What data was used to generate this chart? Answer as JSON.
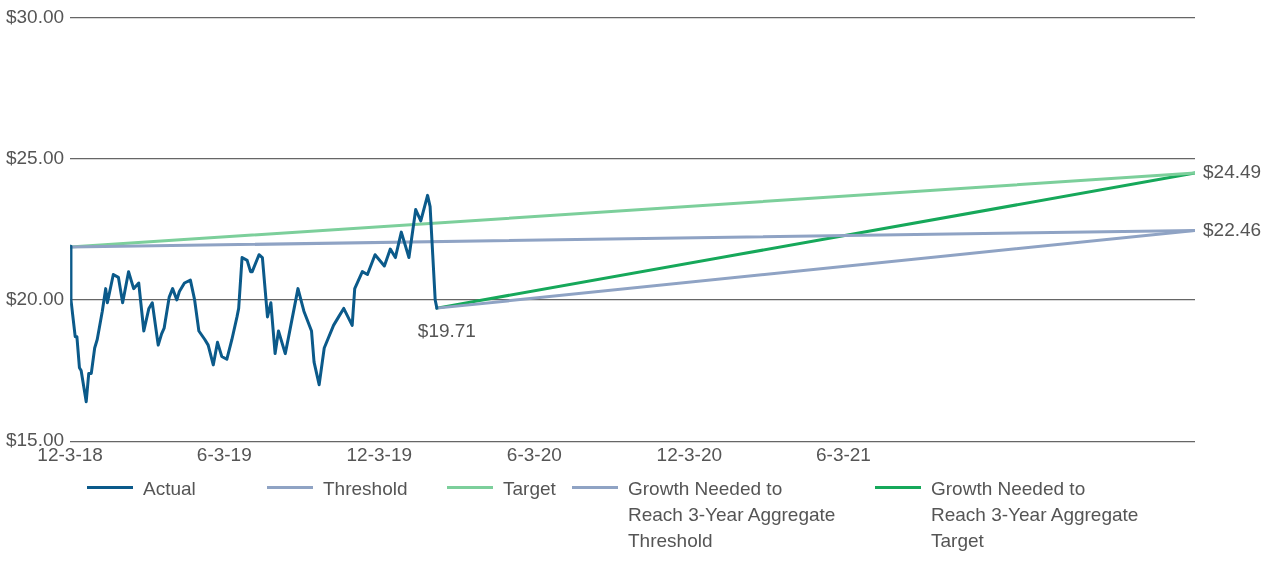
{
  "chart_data": {
    "type": "line",
    "xlim": [
      "2018-12-03",
      "2022-07-23"
    ],
    "xticks": [
      {
        "value": "2018-12-03",
        "label": "12-3-18"
      },
      {
        "value": "2019-06-03",
        "label": "6-3-19"
      },
      {
        "value": "2019-12-03",
        "label": "12-3-19"
      },
      {
        "value": "2020-06-03",
        "label": "6-3-20"
      },
      {
        "value": "2020-12-03",
        "label": "12-3-20"
      },
      {
        "value": "2021-06-03",
        "label": "6-3-21"
      }
    ],
    "ylim": [
      15,
      30
    ],
    "yticks": [
      {
        "value": 15,
        "label": "$15.00"
      },
      {
        "value": 20,
        "label": "$20.00"
      },
      {
        "value": 25,
        "label": "$25.00"
      },
      {
        "value": 30,
        "label": "$30.00"
      }
    ],
    "grid": "y",
    "legend": "bottom",
    "marker": "none",
    "line_style": "solid",
    "series": [
      {
        "name": "Actual",
        "color": "#0b5a8a",
        "x": [
          "2018-12-03",
          "2018-12-04",
          "2018-12-09",
          "2018-12-11",
          "2018-12-14",
          "2018-12-16",
          "2018-12-22",
          "2018-12-25",
          "2018-12-28",
          "2019-01-01",
          "2019-01-04",
          "2019-01-10",
          "2019-01-14",
          "2019-01-16",
          "2019-01-23",
          "2019-01-29",
          "2019-02-03",
          "2019-02-10",
          "2019-02-16",
          "2019-02-22",
          "2019-02-28",
          "2019-03-06",
          "2019-03-10",
          "2019-03-17",
          "2019-03-21",
          "2019-03-24",
          "2019-03-30",
          "2019-04-03",
          "2019-04-08",
          "2019-04-11",
          "2019-04-17",
          "2019-04-24",
          "2019-04-29",
          "2019-05-04",
          "2019-05-11",
          "2019-05-15",
          "2019-05-21",
          "2019-05-26",
          "2019-05-31",
          "2019-06-06",
          "2019-06-12",
          "2019-06-18",
          "2019-06-20",
          "2019-06-24",
          "2019-06-30",
          "2019-07-04",
          "2019-07-06",
          "2019-07-14",
          "2019-07-18",
          "2019-07-24",
          "2019-07-28",
          "2019-08-02",
          "2019-08-06",
          "2019-08-14",
          "2019-08-18",
          "2019-08-29",
          "2019-09-05",
          "2019-09-14",
          "2019-09-17",
          "2019-09-23",
          "2019-09-29",
          "2019-10-10",
          "2019-10-16",
          "2019-10-22",
          "2019-11-01",
          "2019-11-04",
          "2019-11-13",
          "2019-11-19",
          "2019-11-28",
          "2019-12-09",
          "2019-12-16",
          "2019-12-22",
          "2019-12-29",
          "2020-01-07",
          "2020-01-15",
          "2020-01-21",
          "2020-01-29",
          "2020-02-01",
          "2020-02-07",
          "2020-02-09"
        ],
        "values": [
          21.9,
          20.0,
          18.7,
          18.7,
          17.6,
          17.5,
          16.4,
          17.4,
          17.4,
          18.3,
          18.6,
          19.6,
          20.4,
          19.9,
          20.9,
          20.8,
          19.9,
          21.0,
          20.4,
          20.6,
          18.9,
          19.7,
          19.9,
          18.4,
          18.8,
          19.0,
          20.1,
          20.4,
          20.0,
          20.3,
          20.6,
          20.7,
          20.0,
          18.9,
          18.6,
          18.4,
          17.7,
          18.5,
          18.0,
          17.9,
          18.6,
          19.4,
          19.7,
          21.5,
          21.4,
          21.0,
          21.0,
          21.6,
          21.5,
          19.4,
          19.9,
          18.1,
          18.9,
          18.1,
          18.7,
          20.4,
          19.6,
          18.9,
          17.8,
          17.0,
          18.3,
          19.1,
          19.4,
          19.7,
          19.1,
          20.4,
          21.0,
          20.9,
          21.6,
          21.2,
          21.8,
          21.5,
          22.4,
          21.5,
          23.2,
          22.8,
          23.7,
          23.3,
          20.0,
          19.71
        ]
      },
      {
        "name": "Threshold",
        "color": "#8fa3c4",
        "x": [
          "2018-12-03",
          "2022-07-23"
        ],
        "values": [
          21.87,
          22.46
        ]
      },
      {
        "name": "Target",
        "color": "#7ccf9b",
        "x": [
          "2018-12-03",
          "2022-07-23"
        ],
        "values": [
          21.87,
          24.49
        ]
      },
      {
        "name": "Growth Needed to Reach 3-Year Aggregate Threshold",
        "color": "#8fa3c4",
        "x": [
          "2020-02-09",
          "2022-07-23"
        ],
        "values": [
          19.71,
          22.46
        ]
      },
      {
        "name": "Growth Needed to Reach 3-Year Aggregate Target",
        "color": "#16a85a",
        "x": [
          "2020-02-09",
          "2022-07-23"
        ],
        "values": [
          19.71,
          24.49
        ]
      }
    ],
    "annotations": [
      {
        "text": "$19.71",
        "x": "2020-02-09",
        "y": 19.71
      },
      {
        "text": "$24.49",
        "x": "2022-07-23",
        "y": 24.49
      },
      {
        "text": "$22.46",
        "x": "2022-07-23",
        "y": 22.46
      }
    ]
  }
}
